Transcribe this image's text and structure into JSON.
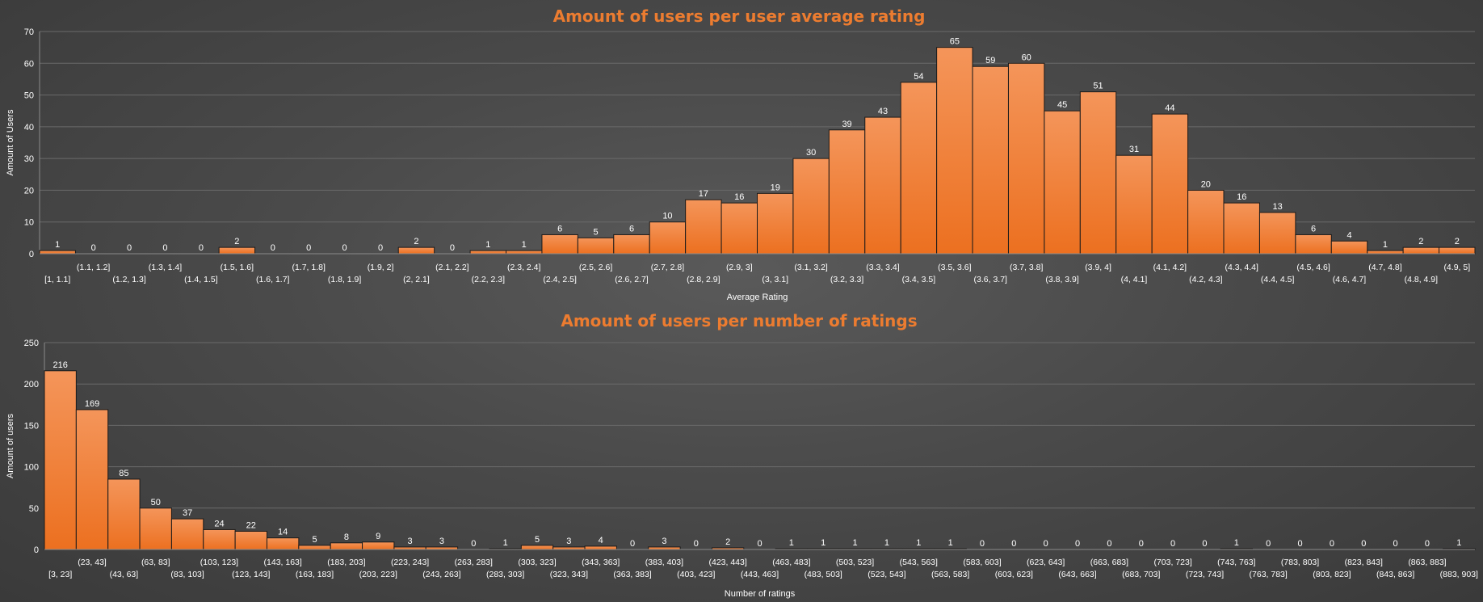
{
  "colors": {
    "bar_top": "#f4955a",
    "bar_bottom": "#ec7020",
    "bar_edge": "#1a1a1a",
    "title": "#ec7c30",
    "text": "#ffffff",
    "grid": "#6a6a6a"
  },
  "chart_data": [
    {
      "type": "bar",
      "title": "Amount of users per user average rating",
      "xlabel": "Average Rating",
      "ylabel": "Amount of Users",
      "ylim": [
        0,
        70
      ],
      "yticks": [
        0,
        10,
        20,
        30,
        40,
        50,
        60,
        70
      ],
      "grid": true,
      "categories": [
        "[1, 1.1]",
        "(1.1, 1.2]",
        "(1.2, 1.3]",
        "(1.3, 1.4]",
        "(1.4, 1.5]",
        "(1.5, 1.6]",
        "(1.6, 1.7]",
        "(1.7, 1.8]",
        "(1.8, 1.9]",
        "(1.9, 2]",
        "(2, 2.1]",
        "(2.1, 2.2]",
        "(2.2, 2.3]",
        "(2.3, 2.4]",
        "(2.4, 2.5]",
        "(2.5, 2.6]",
        "(2.6, 2.7]",
        "(2.7, 2.8]",
        "(2.8, 2.9]",
        "(2.9, 3]",
        "(3, 3.1]",
        "(3.1, 3.2]",
        "(3.2, 3.3]",
        "(3.3, 3.4]",
        "(3.4, 3.5]",
        "(3.5, 3.6]",
        "(3.6, 3.7]",
        "(3.7, 3.8]",
        "(3.8, 3.9]",
        "(3.9, 4]",
        "(4, 4.1]",
        "(4.1, 4.2]",
        "(4.2, 4.3]",
        "(4.3, 4.4]",
        "(4.4, 4.5]",
        "(4.5, 4.6]",
        "(4.6, 4.7]",
        "(4.7, 4.8]",
        "(4.8, 4.9]",
        "(4.9, 5]"
      ],
      "values": [
        1,
        0,
        0,
        0,
        0,
        2,
        0,
        0,
        0,
        0,
        2,
        0,
        1,
        1,
        6,
        5,
        6,
        10,
        17,
        16,
        19,
        30,
        39,
        43,
        54,
        65,
        59,
        60,
        45,
        51,
        31,
        44,
        20,
        16,
        13,
        6,
        4,
        1,
        2,
        2
      ]
    },
    {
      "type": "bar",
      "title": "Amount of users per number of ratings",
      "xlabel": "Number of ratings",
      "ylabel": "Amount of users",
      "ylim": [
        0,
        250
      ],
      "yticks": [
        0,
        50,
        100,
        150,
        200,
        250
      ],
      "grid": true,
      "categories": [
        "[3, 23]",
        "(23, 43]",
        "(43, 63]",
        "(63, 83]",
        "(83, 103]",
        "(103, 123]",
        "(123, 143]",
        "(143, 163]",
        "(163, 183]",
        "(183, 203]",
        "(203, 223]",
        "(223, 243]",
        "(243, 263]",
        "(263, 283]",
        "(283, 303]",
        "(303, 323]",
        "(323, 343]",
        "(343, 363]",
        "(363, 383]",
        "(383, 403]",
        "(403, 423]",
        "(423, 443]",
        "(443, 463]",
        "(463, 483]",
        "(483, 503]",
        "(503, 523]",
        "(523, 543]",
        "(543, 563]",
        "(563, 583]",
        "(583, 603]",
        "(603, 623]",
        "(623, 643]",
        "(643, 663]",
        "(663, 683]",
        "(683, 703]",
        "(703, 723]",
        "(723, 743]",
        "(743, 763]",
        "(763, 783]",
        "(783, 803]",
        "(803, 823]",
        "(823, 843]",
        "(843, 863]",
        "(863, 883]",
        "(883, 903]"
      ],
      "values": [
        216,
        169,
        85,
        50,
        37,
        24,
        22,
        14,
        5,
        8,
        9,
        3,
        3,
        0,
        1,
        5,
        3,
        4,
        0,
        3,
        0,
        2,
        0,
        1,
        1,
        1,
        1,
        1,
        1,
        0,
        0,
        0,
        0,
        0,
        0,
        0,
        0,
        1,
        0,
        0,
        0,
        0,
        0,
        0,
        1
      ]
    }
  ]
}
